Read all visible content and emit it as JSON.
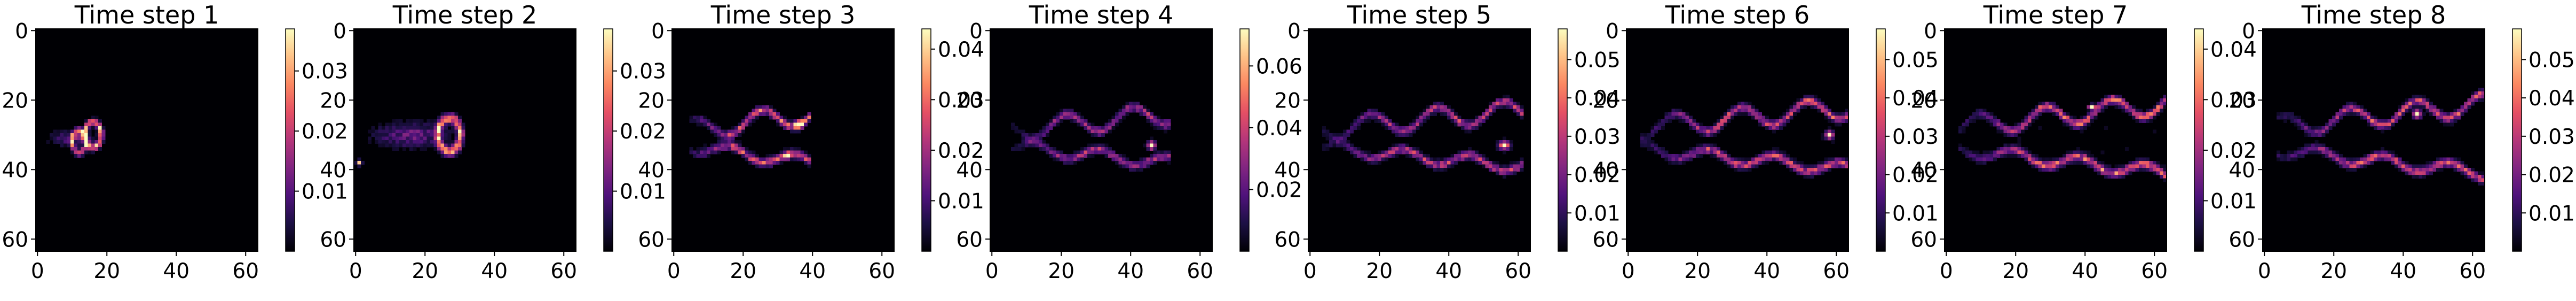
{
  "figure": {
    "colormap": "magma",
    "colormap_stops": [
      "#000004",
      "#1c1044",
      "#4f127b",
      "#812581",
      "#b5367a",
      "#e55064",
      "#fb8761",
      "#fec287",
      "#fcfdbf"
    ]
  },
  "chart_data": [
    {
      "type": "heatmap",
      "title": "Time step 1",
      "grid": "64x64",
      "xlim": [
        0,
        63
      ],
      "ylim": [
        63,
        0
      ],
      "x_ticks": [
        "0",
        "20",
        "40",
        "60"
      ],
      "y_ticks": [
        "0",
        "20",
        "40",
        "60"
      ],
      "colorbar": {
        "min": 0,
        "max": 0.037,
        "ticks": [
          0.01,
          0.02,
          0.03
        ],
        "tick_labels": [
          "0.01",
          "0.02",
          "0.03"
        ]
      },
      "features": [
        {
          "kind": "wake",
          "cx": 10,
          "cy": 31,
          "width": 14,
          "height": 5,
          "peak": 0.033
        },
        {
          "kind": "arc",
          "cx": 16,
          "cy": 30,
          "width": 6,
          "height": 9,
          "peak": 0.037
        },
        {
          "kind": "arc",
          "cx": 12,
          "cy": 32,
          "width": 5,
          "height": 8,
          "peak": 0.03
        }
      ]
    },
    {
      "type": "heatmap",
      "title": "Time step 2",
      "grid": "64x64",
      "xlim": [
        0,
        63
      ],
      "ylim": [
        63,
        0
      ],
      "x_ticks": [
        "0",
        "20",
        "40",
        "60"
      ],
      "y_ticks": [
        "0",
        "20",
        "40",
        "60"
      ],
      "colorbar": {
        "min": 0,
        "max": 0.037,
        "ticks": [
          0.01,
          0.02,
          0.03
        ],
        "tick_labels": [
          "0.01",
          "0.02",
          "0.03"
        ]
      },
      "features": [
        {
          "kind": "wake",
          "cx": 16,
          "cy": 30,
          "width": 24,
          "height": 8,
          "peak": 0.034
        },
        {
          "kind": "arc",
          "cx": 27,
          "cy": 30,
          "width": 8,
          "height": 12,
          "peak": 0.037
        },
        {
          "kind": "spot",
          "cx": 1,
          "cy": 38,
          "width": 2,
          "height": 2,
          "peak": 0.033
        }
      ]
    },
    {
      "type": "heatmap",
      "title": "Time step 3",
      "grid": "64x64",
      "xlim": [
        0,
        63
      ],
      "ylim": [
        63,
        0
      ],
      "x_ticks": [
        "0",
        "20",
        "40",
        "60"
      ],
      "y_ticks": [
        "0",
        "20",
        "40",
        "60"
      ],
      "colorbar": {
        "min": 0,
        "max": 0.044,
        "ticks": [
          0.01,
          0.02,
          0.03,
          0.04
        ],
        "tick_labels": [
          "0.01",
          "0.02",
          "0.03",
          "0.04"
        ]
      },
      "features": [
        {
          "kind": "shear_layers",
          "cx": 22,
          "cy": 31,
          "width": 34,
          "height": 14,
          "peak": 0.04
        },
        {
          "kind": "spot",
          "cx": 36,
          "cy": 27,
          "width": 3,
          "height": 3,
          "peak": 0.044
        },
        {
          "kind": "spot",
          "cx": 33,
          "cy": 36,
          "width": 2,
          "height": 2,
          "peak": 0.042
        }
      ]
    },
    {
      "type": "heatmap",
      "title": "Time step 4",
      "grid": "64x64",
      "xlim": [
        0,
        63
      ],
      "ylim": [
        63,
        0
      ],
      "x_ticks": [
        "0",
        "20",
        "40",
        "60"
      ],
      "y_ticks": [
        "0",
        "20",
        "40",
        "60"
      ],
      "colorbar": {
        "min": 0,
        "max": 0.072,
        "ticks": [
          0.02,
          0.04,
          0.06
        ],
        "tick_labels": [
          "0.02",
          "0.04",
          "0.06"
        ]
      },
      "features": [
        {
          "kind": "shear_layers",
          "cx": 28,
          "cy": 31,
          "width": 44,
          "height": 14,
          "peak": 0.05
        },
        {
          "kind": "spot",
          "cx": 46,
          "cy": 33,
          "width": 3,
          "height": 3,
          "peak": 0.07
        }
      ]
    },
    {
      "type": "heatmap",
      "title": "Time step 5",
      "grid": "64x64",
      "xlim": [
        0,
        63
      ],
      "ylim": [
        63,
        0
      ],
      "x_ticks": [
        "0",
        "20",
        "40",
        "60"
      ],
      "y_ticks": [
        "0",
        "20",
        "40",
        "60"
      ],
      "colorbar": {
        "min": 0,
        "max": 0.058,
        "ticks": [
          0.01,
          0.02,
          0.03,
          0.04,
          0.05
        ],
        "tick_labels": [
          "0.01",
          "0.02",
          "0.03",
          "0.04",
          "0.05"
        ]
      },
      "features": [
        {
          "kind": "shear_layers",
          "cx": 32,
          "cy": 31,
          "width": 56,
          "height": 16,
          "peak": 0.045
        },
        {
          "kind": "spot",
          "cx": 56,
          "cy": 33,
          "width": 4,
          "height": 3,
          "peak": 0.056
        }
      ]
    },
    {
      "type": "heatmap",
      "title": "Time step 6",
      "grid": "64x64",
      "xlim": [
        0,
        63
      ],
      "ylim": [
        63,
        0
      ],
      "x_ticks": [
        "0",
        "20",
        "40",
        "60"
      ],
      "y_ticks": [
        "0",
        "20",
        "40",
        "60"
      ],
      "colorbar": {
        "min": 0,
        "max": 0.058,
        "ticks": [
          0.01,
          0.02,
          0.03,
          0.04,
          0.05
        ],
        "tick_labels": [
          "0.01",
          "0.02",
          "0.03",
          "0.04",
          "0.05"
        ]
      },
      "features": [
        {
          "kind": "shear_layers",
          "cx": 34,
          "cy": 31,
          "width": 60,
          "height": 18,
          "peak": 0.05
        },
        {
          "kind": "spot",
          "cx": 58,
          "cy": 30,
          "width": 3,
          "height": 3,
          "peak": 0.056
        }
      ]
    },
    {
      "type": "heatmap",
      "title": "Time step 7",
      "grid": "64x64",
      "xlim": [
        0,
        63
      ],
      "ylim": [
        63,
        0
      ],
      "x_ticks": [
        "0",
        "20",
        "40",
        "60"
      ],
      "y_ticks": [
        "0",
        "20",
        "40",
        "60"
      ],
      "colorbar": {
        "min": 0,
        "max": 0.044,
        "ticks": [
          0.01,
          0.02,
          0.03,
          0.04
        ],
        "tick_labels": [
          "0.01",
          "0.02",
          "0.03",
          "0.04"
        ]
      },
      "features": [
        {
          "kind": "shear_layers",
          "cx": 34,
          "cy": 31,
          "width": 60,
          "height": 20,
          "peak": 0.042
        },
        {
          "kind": "spot",
          "cx": 42,
          "cy": 22,
          "width": 3,
          "height": 2,
          "peak": 0.044
        }
      ]
    },
    {
      "type": "heatmap",
      "title": "Time step 8",
      "grid": "64x64",
      "xlim": [
        0,
        63
      ],
      "ylim": [
        63,
        0
      ],
      "x_ticks": [
        "0",
        "20",
        "40",
        "60"
      ],
      "y_ticks": [
        "0",
        "20",
        "40",
        "60"
      ],
      "colorbar": {
        "min": 0,
        "max": 0.058,
        "ticks": [
          0.01,
          0.02,
          0.03,
          0.04,
          0.05
        ],
        "tick_labels": [
          "0.01",
          "0.02",
          "0.03",
          "0.04",
          "0.05"
        ]
      },
      "features": [
        {
          "kind": "shear_layers",
          "cx": 34,
          "cy": 31,
          "width": 60,
          "height": 20,
          "peak": 0.05
        },
        {
          "kind": "spot",
          "cx": 44,
          "cy": 24,
          "width": 3,
          "height": 3,
          "peak": 0.056
        }
      ]
    }
  ]
}
